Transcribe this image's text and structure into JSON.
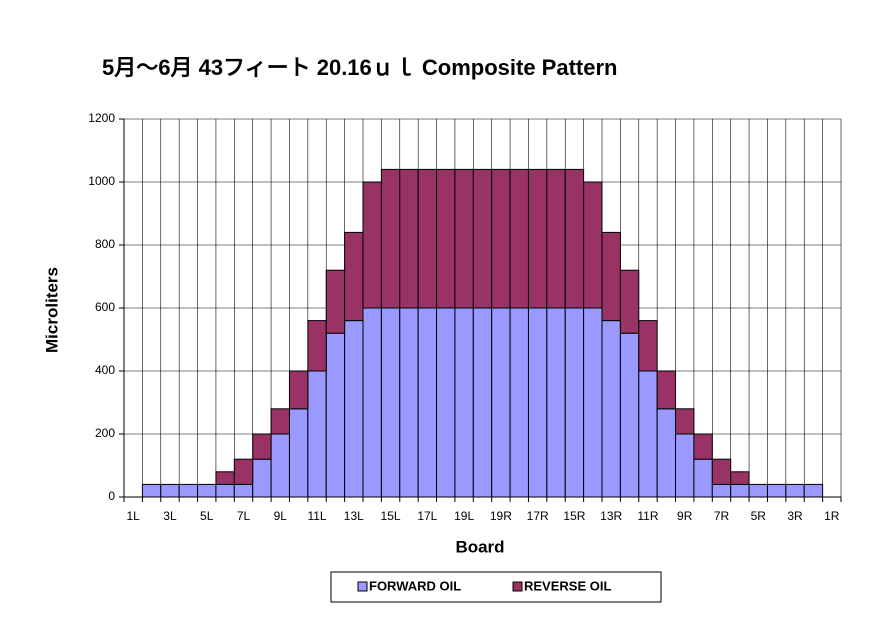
{
  "chart_data": {
    "type": "stacked_bar",
    "title": "5月～6月 43フィート 20.16ｕｌ Composite Pattern",
    "x_label": "Board",
    "y_label": "Microliters",
    "categories": [
      "1L",
      null,
      "3L",
      null,
      "5L",
      null,
      "7L",
      null,
      "9L",
      null,
      "11L",
      null,
      "13L",
      null,
      "15L",
      null,
      "17L",
      null,
      "19L",
      null,
      "19R",
      null,
      "17R",
      null,
      "15R",
      null,
      "13R",
      null,
      "11R",
      null,
      "9R",
      null,
      "7R",
      null,
      "5R",
      null,
      "3R",
      null,
      "1R"
    ],
    "series": [
      {
        "name": "FORWARD OIL",
        "color": "#9999ff",
        "values": [
          0,
          40,
          40,
          40,
          40,
          40,
          40,
          120,
          200,
          280,
          400,
          520,
          560,
          600,
          600,
          600,
          600,
          600,
          600,
          600,
          600,
          600,
          600,
          600,
          600,
          600,
          560,
          520,
          400,
          280,
          200,
          120,
          40,
          40,
          40,
          40,
          40,
          40,
          0
        ]
      },
      {
        "name": "REVERSE OIL",
        "color": "#993366",
        "values": [
          0,
          0,
          0,
          0,
          0,
          40,
          80,
          80,
          80,
          120,
          160,
          200,
          280,
          400,
          440,
          440,
          440,
          440,
          440,
          440,
          440,
          440,
          440,
          440,
          440,
          400,
          280,
          200,
          160,
          120,
          80,
          80,
          80,
          40,
          0,
          0,
          0,
          0,
          0
        ]
      }
    ],
    "ylim": [
      0,
      1200
    ],
    "yticks": [
      0,
      200,
      400,
      600,
      800,
      1000,
      1200
    ],
    "grid": true,
    "legend": "bottom"
  }
}
